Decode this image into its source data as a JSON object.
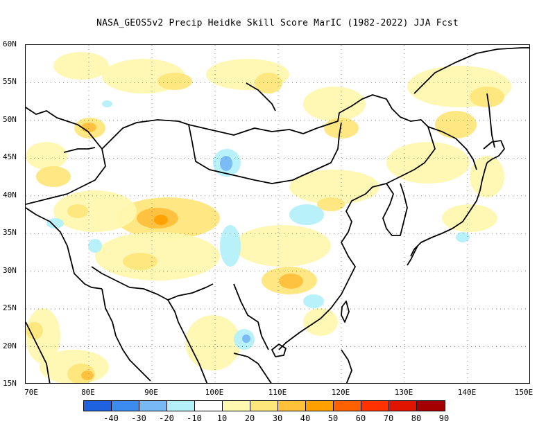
{
  "title": "NASA_GEOS5v2 Precip Heidke Skill Score MarIC (1982-2022) JJA Fcst",
  "map": {
    "lon_range": [
      70,
      150
    ],
    "lat_range": [
      15,
      60
    ],
    "lat_ticks": [
      "60N",
      "55N",
      "50N",
      "45N",
      "40N",
      "35N",
      "30N",
      "25N",
      "20N",
      "15N"
    ],
    "lon_ticks": [
      "70E",
      "80E",
      "90E",
      "100E",
      "110E",
      "120E",
      "130E",
      "140E",
      "150E"
    ]
  },
  "colorbar": {
    "colors": [
      "#1f62e0",
      "#3c8cf0",
      "#78b8f5",
      "#b4f0fa",
      "#ffffff",
      "#fff8b0",
      "#ffe67c",
      "#ffc03c",
      "#ffa000",
      "#ff6000",
      "#ff3200",
      "#e11400",
      "#a50000"
    ],
    "labels": [
      "-40",
      "-30",
      "-20",
      "-10",
      "10",
      "20",
      "30",
      "40",
      "50",
      "60",
      "70",
      "80",
      "90"
    ]
  }
}
